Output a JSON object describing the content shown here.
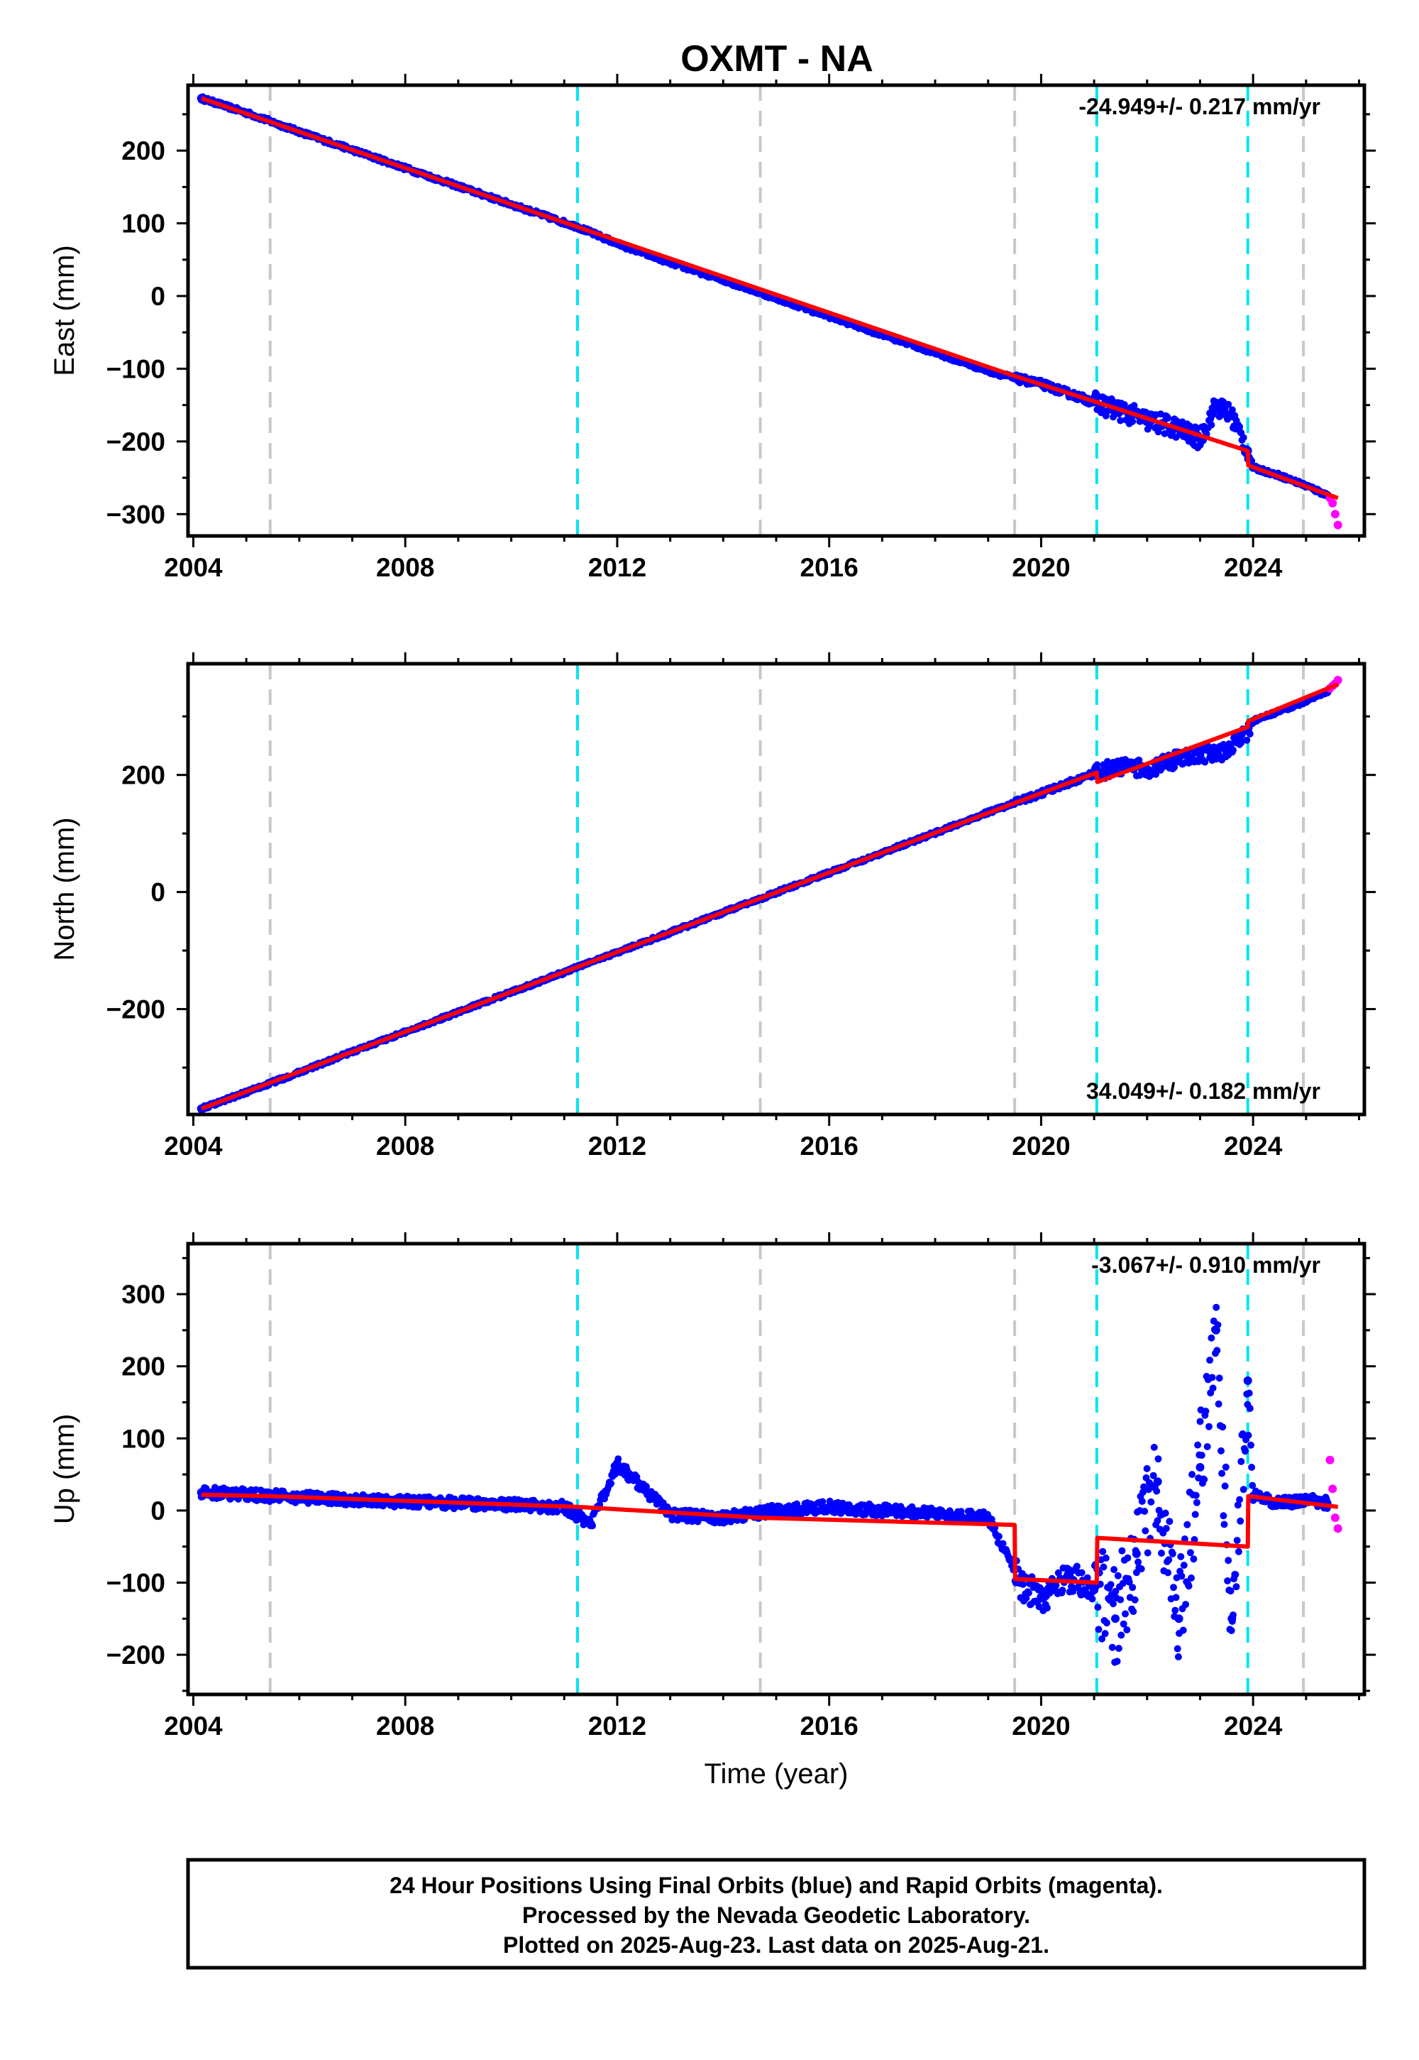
{
  "title": "OXMT - NA",
  "footer": {
    "lines": [
      "24 Hour Positions Using Final Orbits (blue) and Rapid Orbits (magenta).",
      "Processed by the Nevada Geodetic Laboratory.",
      "Plotted on 2025-Aug-23. Last data on 2025-Aug-21."
    ]
  },
  "colors": {
    "final_orbits": "#0000ff",
    "rapid_orbits": "#ff00ff",
    "model": "#ff0000",
    "equipment_change": "#c8c8c8",
    "earthquake_event": "#00e5ee"
  },
  "chart_data": [
    {
      "type": "scatter",
      "component": "east",
      "xlabel": "",
      "ylabel": "East (mm)",
      "xlim": [
        2003.9,
        2026.1
      ],
      "ylim": [
        -330,
        290
      ],
      "xticks": [
        2004,
        2008,
        2012,
        2016,
        2020,
        2024
      ],
      "xtick_labels": [
        "2004",
        "2008",
        "2012",
        "2016",
        "2020",
        "2024"
      ],
      "yticks": [
        -300,
        -200,
        -100,
        0,
        100,
        200
      ],
      "ytick_labels": [
        "−300",
        "−200",
        "−100",
        "0",
        "100",
        "200"
      ],
      "rate_label": "-24.949+/- 0.217 mm/yr",
      "rate_position": "top-right",
      "gray_lines": [
        2005.45,
        2014.7,
        2019.5,
        2024.95
      ],
      "cyan_lines": [
        2011.25,
        2021.05,
        2023.9
      ],
      "series": [
        {
          "role": "final_orbits",
          "x": [
            2004.15,
            2005.0,
            2006.0,
            2007.0,
            2008.0,
            2009.0,
            2010.0,
            2011.0,
            2011.25,
            2012.0,
            2013.0,
            2014.0,
            2015.0,
            2016.0,
            2017.0,
            2018.0,
            2019.0,
            2019.5,
            2020.0,
            2021.0,
            2021.5,
            2022.0,
            2022.5,
            2023.0,
            2023.3,
            2023.6,
            2023.9,
            2024.0,
            2024.5,
            2025.0,
            2025.4
          ],
          "y": [
            272,
            252,
            226,
            201,
            176,
            151,
            126,
            101,
            95,
            72,
            46,
            22,
            -3,
            -28,
            -53,
            -78,
            -103,
            -113,
            -121,
            -146,
            -158,
            -171,
            -180,
            -197,
            -150,
            -165,
            -213,
            -236,
            -247,
            -261,
            -274
          ]
        },
        {
          "role": "rapid_orbits",
          "x": [
            2025.45,
            2025.5,
            2025.55,
            2025.6
          ],
          "y": [
            -278,
            -285,
            -300,
            -315
          ]
        },
        {
          "role": "model",
          "x": [
            2004.15,
            2011.25,
            2019.5,
            2021.05,
            2023.9,
            2023.91,
            2025.6
          ],
          "y": [
            272,
            95,
            -110,
            -146,
            -213,
            -233,
            -278
          ]
        }
      ]
    },
    {
      "type": "scatter",
      "component": "north",
      "xlabel": "",
      "ylabel": "North (mm)",
      "xlim": [
        2003.9,
        2026.1
      ],
      "ylim": [
        -380,
        390
      ],
      "xticks": [
        2004,
        2008,
        2012,
        2016,
        2020,
        2024
      ],
      "xtick_labels": [
        "2004",
        "2008",
        "2012",
        "2016",
        "2020",
        "2024"
      ],
      "yticks": [
        -200,
        0,
        200
      ],
      "ytick_labels": [
        "−200",
        "0",
        "200"
      ],
      "rate_label": "34.049+/- 0.182 mm/yr",
      "rate_position": "bottom-right",
      "gray_lines": [
        2005.45,
        2014.7,
        2019.5,
        2024.95
      ],
      "cyan_lines": [
        2011.25,
        2021.05,
        2023.9
      ],
      "series": [
        {
          "role": "final_orbits",
          "x": [
            2004.15,
            2005.0,
            2006.0,
            2007.0,
            2008.0,
            2009.0,
            2010.0,
            2011.0,
            2011.25,
            2012.0,
            2013.0,
            2014.0,
            2015.0,
            2016.0,
            2017.0,
            2018.0,
            2019.0,
            2019.5,
            2020.0,
            2021.0,
            2021.5,
            2022.0,
            2022.5,
            2023.0,
            2023.5,
            2023.9,
            2024.0,
            2024.5,
            2025.0,
            2025.4
          ],
          "y": [
            -370,
            -342,
            -308,
            -273,
            -239,
            -205,
            -171,
            -137,
            -128,
            -103,
            -69,
            -35,
            -1,
            33,
            67,
            101,
            136,
            152,
            168,
            203,
            215,
            210,
            225,
            235,
            240,
            275,
            292,
            309,
            326,
            342
          ]
        },
        {
          "role": "rapid_orbits",
          "x": [
            2025.45,
            2025.5,
            2025.55,
            2025.6
          ],
          "y": [
            348,
            352,
            356,
            362
          ]
        },
        {
          "role": "model",
          "x": [
            2004.15,
            2011.25,
            2019.5,
            2021.05,
            2021.06,
            2023.9,
            2023.91,
            2025.6
          ],
          "y": [
            -370,
            -128,
            152,
            204,
            188,
            282,
            292,
            355
          ]
        }
      ]
    },
    {
      "type": "scatter",
      "component": "up",
      "xlabel": "Time (year)",
      "ylabel": "Up (mm)",
      "xlim": [
        2003.9,
        2026.1
      ],
      "ylim": [
        -255,
        370
      ],
      "xticks": [
        2004,
        2008,
        2012,
        2016,
        2020,
        2024
      ],
      "xtick_labels": [
        "2004",
        "2008",
        "2012",
        "2016",
        "2020",
        "2024"
      ],
      "yticks": [
        -200,
        -100,
        0,
        100,
        200,
        300
      ],
      "ytick_labels": [
        "−200",
        "−100",
        "0",
        "100",
        "200",
        "300"
      ],
      "rate_label": "-3.067+/- 0.910 mm/yr",
      "rate_position": "top-right",
      "gray_lines": [
        2005.45,
        2014.7,
        2019.5,
        2024.95
      ],
      "cyan_lines": [
        2011.25,
        2021.05,
        2023.9
      ],
      "series": [
        {
          "role": "final_orbits",
          "x": [
            2004.15,
            2005.0,
            2006.0,
            2007.0,
            2008.0,
            2009.0,
            2010.0,
            2011.0,
            2011.5,
            2012.0,
            2013.0,
            2014.0,
            2015.0,
            2016.0,
            2017.0,
            2018.0,
            2019.0,
            2019.6,
            2020.0,
            2020.5,
            2021.0,
            2021.4,
            2021.8,
            2022.2,
            2022.6,
            2023.0,
            2023.3,
            2023.6,
            2023.9,
            2024.0,
            2024.5,
            2025.0,
            2025.4
          ],
          "y": [
            25,
            22,
            18,
            15,
            12,
            10,
            8,
            5,
            -20,
            65,
            -5,
            -10,
            0,
            5,
            0,
            -5,
            -10,
            -100,
            -120,
            -90,
            -110,
            -150,
            -60,
            40,
            -150,
            60,
            250,
            -150,
            180,
            20,
            10,
            15,
            10
          ]
        },
        {
          "role": "rapid_orbits",
          "x": [
            2025.45,
            2025.5,
            2025.55,
            2025.6
          ],
          "y": [
            70,
            30,
            -10,
            -25
          ]
        },
        {
          "role": "model",
          "x": [
            2004.15,
            2005.45,
            2011.25,
            2014.7,
            2019.5,
            2019.51,
            2021.05,
            2021.06,
            2023.9,
            2023.91,
            2025.6
          ],
          "y": [
            22,
            20,
            5,
            -10,
            -20,
            -95,
            -100,
            -38,
            -50,
            20,
            5
          ]
        }
      ]
    }
  ]
}
